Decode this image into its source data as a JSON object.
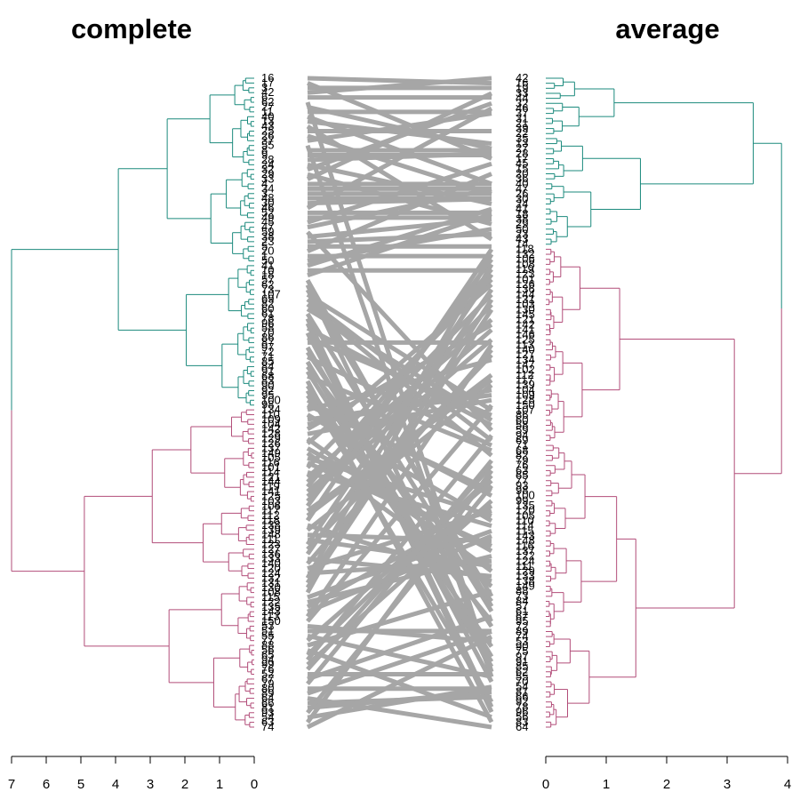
{
  "chart_data": {
    "type": "tanglegram",
    "left": {
      "title": "complete",
      "axis_ticks": [
        "7",
        "6",
        "5",
        "4",
        "3",
        "2",
        "1",
        "0"
      ],
      "xlim": [
        7,
        0
      ],
      "height": 7.0,
      "colors": [
        "#1b8a7d",
        "#b24d79"
      ],
      "leaf_labels_top": [
        "16",
        "17",
        "3",
        "42",
        "6",
        "62",
        "27",
        "11",
        "40",
        "13",
        "43",
        "25",
        "26",
        "37",
        "55",
        "8",
        "9",
        "28",
        "24",
        "32",
        "29",
        "33",
        "4",
        "34",
        "3",
        "48",
        "30",
        "46",
        "52",
        "49",
        "45",
        "47",
        "59",
        "38",
        "23",
        "5",
        "20",
        "1",
        "50",
        "41",
        "10",
        "18"
      ],
      "leaf_labels_mid": [
        "57",
        "62",
        "73",
        "107",
        "69",
        "82",
        "60",
        "61",
        "78",
        "96",
        "58",
        "70",
        "86",
        "87",
        "97",
        "72",
        "71",
        "85",
        "84",
        "91",
        "68",
        "83",
        "90",
        "92",
        "95",
        "100",
        "98"
      ],
      "leaf_labels_bottom": [
        "134",
        "110",
        "109",
        "104",
        "142",
        "128",
        "129",
        "126",
        "137",
        "149",
        "105",
        "116",
        "101",
        "114",
        "121",
        "144",
        "119",
        "141",
        "125",
        "103",
        "106",
        "117",
        "112",
        "118",
        "138",
        "139",
        "148",
        "111",
        "123",
        "127",
        "136",
        "133",
        "140",
        "120",
        "124",
        "132",
        "131",
        "130",
        "108",
        "115",
        "122",
        "135",
        "143",
        "113",
        "150",
        "53",
        "51",
        "55",
        "77",
        "88",
        "56",
        "65",
        "94",
        "99",
        "76",
        "52",
        "67",
        "79",
        "80",
        "89",
        "64",
        "66",
        "81",
        "93",
        "54",
        "63",
        "74"
      ]
    },
    "right": {
      "title": "average",
      "axis_ticks": [
        "0",
        "1",
        "2",
        "3",
        "4"
      ],
      "xlim": [
        0,
        4
      ],
      "height": 3.9,
      "colors": [
        "#1b8a7d",
        "#b24d79"
      ],
      "leaf_labels_top": [
        "42",
        "16",
        "19",
        "33",
        "44",
        "32",
        "46",
        "37",
        "31",
        "21",
        "39",
        "22",
        "35",
        "13",
        "27",
        "28",
        "17",
        "45",
        "15",
        "20",
        "36",
        "40",
        "47",
        "26",
        "30",
        "24",
        "41",
        "18",
        "38",
        "29",
        "50",
        "23",
        "43",
        "14"
      ],
      "leaf_labels_mid": [
        "118",
        "132",
        "106",
        "108",
        "119",
        "123",
        "101",
        "126",
        "136",
        "144",
        "131",
        "103",
        "130",
        "145",
        "121",
        "142",
        "141",
        "146",
        "125",
        "113",
        "140",
        "127",
        "134",
        "147",
        "102",
        "112",
        "117",
        "139",
        "104",
        "109",
        "128",
        "150"
      ],
      "leaf_labels_bottom": [
        "107",
        "86",
        "60",
        "58",
        "59",
        "94",
        "69",
        "71",
        "68",
        "82",
        "79",
        "76",
        "63",
        "65",
        "77",
        "93",
        "98",
        "100",
        "99",
        "135",
        "120",
        "105",
        "110",
        "114",
        "115",
        "143",
        "148",
        "116",
        "137",
        "122",
        "124",
        "111",
        "129",
        "133",
        "138",
        "149",
        "88",
        "73",
        "84",
        "57",
        "61",
        "67",
        "95",
        "72",
        "89",
        "74",
        "53",
        "90",
        "75",
        "97",
        "91",
        "85",
        "62",
        "55",
        "70",
        "54",
        "81",
        "66",
        "92",
        "78",
        "96",
        "56",
        "83",
        "64"
      ]
    }
  }
}
